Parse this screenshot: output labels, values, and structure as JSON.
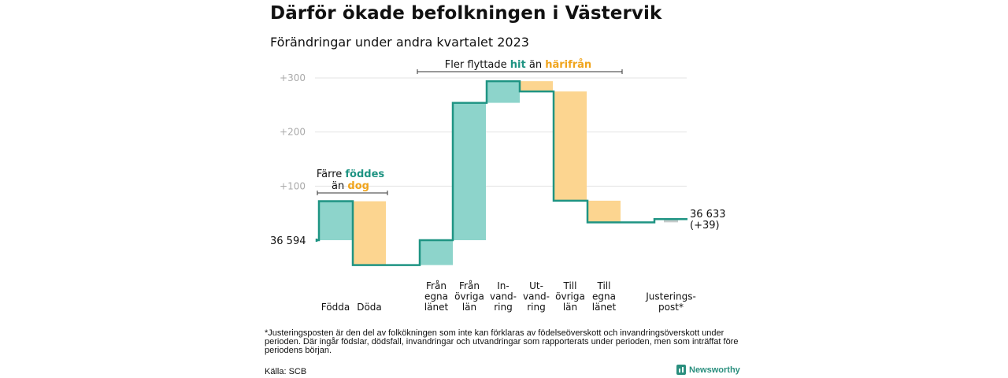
{
  "header": {
    "title": "Därför ökade befolkningen i Västervik",
    "subtitle": "Förändringar under andra kvartalet 2023"
  },
  "chart_data": {
    "type": "waterfall",
    "start_value": 36594,
    "start_label": "36  594",
    "end_value": 36633,
    "end_label_line1": "36 633",
    "end_label_line2": "(+39)",
    "yticks": [
      "+300",
      "+200",
      "+100"
    ],
    "ytick_values": [
      300,
      200,
      100
    ],
    "ylim": [
      -60,
      310
    ],
    "gridlines": true,
    "steps": [
      {
        "label_lines": [
          "Födda"
        ],
        "delta": 72,
        "kind": "positive"
      },
      {
        "label_lines": [
          "Döda"
        ],
        "delta": -118,
        "kind": "negative"
      },
      {
        "label_lines": [
          "Från",
          "egna",
          "länet"
        ],
        "delta": 46,
        "kind": "positive"
      },
      {
        "label_lines": [
          "Från",
          "övriga",
          "län"
        ],
        "delta": 254,
        "kind": "positive"
      },
      {
        "label_lines": [
          "In-",
          "vand-",
          "ring"
        ],
        "delta": 40,
        "kind": "positive"
      },
      {
        "label_lines": [
          "Ut-",
          "vand-",
          "ring"
        ],
        "delta": -19,
        "kind": "negative"
      },
      {
        "label_lines": [
          "Till",
          "övriga",
          "län"
        ],
        "delta": -202,
        "kind": "negative"
      },
      {
        "label_lines": [
          "Till",
          "egna",
          "länet"
        ],
        "delta": -40,
        "kind": "negative"
      },
      {
        "label_lines": [
          "Justerings-",
          "post*"
        ],
        "delta": 6,
        "kind": "adjustment"
      }
    ],
    "annotations": {
      "left": {
        "line1_prefix": "Färre ",
        "line1_highlight": "föddes",
        "line2_prefix": "än ",
        "line2_highlight": "dog"
      },
      "top": {
        "prefix": "Fler flyttade ",
        "highlight1": "hit",
        "middle": " än ",
        "highlight2": "härifrån"
      }
    },
    "colors": {
      "positive": "#8dd4cb",
      "negative": "#fcd590",
      "adjustment": "#c5cbcb",
      "line": "#1f9483",
      "teal_text": "#1f9483",
      "orange_text": "#f0a41c",
      "grid": "#e3e3e3"
    }
  },
  "footer": {
    "footnote": "*Justeringsposten är den del av folkökningen som inte kan förklaras av födelseöverskott och invandringsöverskott under perioden. Där ingår födslar, dödsfall, invandringar och utvandringar som rapporterats under perioden, men som inträffat före periodens början.",
    "source": "Källa: SCB",
    "brand": "Newsworthy"
  }
}
